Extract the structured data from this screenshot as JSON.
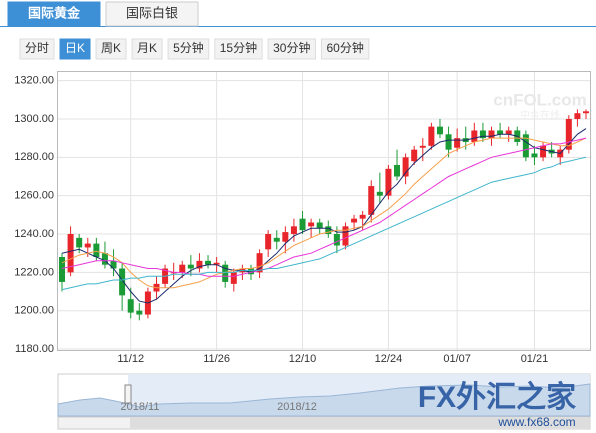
{
  "ui": {
    "tabs": [
      "国际黄金",
      "国际白银"
    ],
    "active_tab": 0,
    "periods": [
      "分时",
      "日K",
      "周K",
      "月K",
      "5分钟",
      "15分钟",
      "30分钟",
      "60分钟"
    ],
    "active_period": 1,
    "navigator_labels": [
      "2018/11",
      "2018/12"
    ],
    "watermark_top": "cnFOL.com",
    "watermark_top_sub": "中金在线",
    "watermark_brand": "FX外汇之家",
    "watermark_url": "www.fx68.com"
  },
  "chart_data": {
    "type": "candlestick",
    "categories": [
      null,
      null,
      null,
      null,
      null,
      null,
      null,
      null,
      "11/12",
      null,
      null,
      null,
      null,
      null,
      null,
      null,
      null,
      null,
      "11/26",
      null,
      null,
      null,
      null,
      null,
      null,
      null,
      null,
      null,
      "12/10",
      null,
      null,
      null,
      null,
      null,
      null,
      null,
      null,
      null,
      "12/24",
      null,
      null,
      null,
      null,
      null,
      null,
      null,
      "01/07",
      null,
      null,
      null,
      null,
      null,
      null,
      null,
      null,
      "01/21",
      null,
      null,
      null,
      null,
      null,
      null
    ],
    "open": [
      1228,
      1220,
      1238,
      1233,
      1235,
      1230,
      1226,
      1222,
      1206,
      1200,
      1198,
      1210,
      1214,
      1220,
      1220,
      1224,
      1222,
      1226,
      1224,
      1224,
      1214,
      1220,
      1222,
      1220,
      1232,
      1238,
      1236,
      1240,
      1248,
      1244,
      1246,
      1244,
      1240,
      1234,
      1246,
      1248,
      1250,
      1262,
      1260,
      1276,
      1270,
      1278,
      1285,
      1286,
      1296,
      1292,
      1285,
      1290,
      1288,
      1294,
      1290,
      1294,
      1292,
      1294,
      1292,
      1282,
      1280,
      1284,
      1280,
      1284,
      1300,
      1303
    ],
    "high": [
      1230,
      1244,
      1240,
      1238,
      1238,
      1236,
      1232,
      1225,
      1212,
      1204,
      1212,
      1218,
      1224,
      1225,
      1226,
      1229,
      1230,
      1229,
      1228,
      1226,
      1222,
      1224,
      1224,
      1232,
      1242,
      1242,
      1244,
      1248,
      1252,
      1248,
      1248,
      1247,
      1244,
      1246,
      1250,
      1252,
      1268,
      1272,
      1276,
      1284,
      1282,
      1286,
      1290,
      1298,
      1300,
      1296,
      1295,
      1296,
      1298,
      1298,
      1296,
      1298,
      1296,
      1296,
      1294,
      1286,
      1288,
      1288,
      1286,
      1302,
      1305,
      1305
    ],
    "low": [
      1210,
      1218,
      1230,
      1228,
      1226,
      1222,
      1218,
      1200,
      1196,
      1195,
      1196,
      1206,
      1212,
      1216,
      1217,
      1218,
      1220,
      1222,
      1220,
      1212,
      1210,
      1216,
      1216,
      1217,
      1228,
      1232,
      1230,
      1236,
      1240,
      1238,
      1240,
      1238,
      1230,
      1232,
      1242,
      1242,
      1246,
      1256,
      1258,
      1268,
      1266,
      1276,
      1278,
      1284,
      1290,
      1280,
      1283,
      1284,
      1286,
      1288,
      1286,
      1290,
      1288,
      1286,
      1278,
      1276,
      1278,
      1280,
      1276,
      1282,
      1296,
      1300
    ],
    "close": [
      1215,
      1240,
      1233,
      1235,
      1228,
      1224,
      1222,
      1208,
      1199,
      1198,
      1210,
      1214,
      1222,
      1220,
      1224,
      1222,
      1226,
      1224,
      1225,
      1215,
      1220,
      1222,
      1219,
      1230,
      1240,
      1236,
      1241,
      1244,
      1242,
      1246,
      1243,
      1240,
      1234,
      1244,
      1248,
      1250,
      1265,
      1260,
      1274,
      1270,
      1280,
      1284,
      1286,
      1296,
      1292,
      1284,
      1290,
      1288,
      1294,
      1290,
      1294,
      1292,
      1294,
      1288,
      1280,
      1280,
      1286,
      1282,
      1284,
      1300,
      1303,
      1304
    ],
    "up_color": "#e8252a",
    "down_color": "#1a9b35",
    "lines": [
      {
        "color": "#1b2a6b",
        "values": [
          1230,
          1231,
          1232,
          1230,
          1228,
          1226,
          1222,
          1216,
          1210,
          1205,
          1204,
          1206,
          1210,
          1214,
          1218,
          1221,
          1223,
          1224,
          1224,
          1222,
          1221,
          1221,
          1220,
          1222,
          1226,
          1230,
          1235,
          1239,
          1241,
          1243,
          1243,
          1243,
          1241,
          1241,
          1242,
          1244,
          1250,
          1256,
          1262,
          1266,
          1272,
          1277,
          1281,
          1285,
          1288,
          1289,
          1289,
          1289,
          1290,
          1291,
          1291,
          1292,
          1292,
          1291,
          1288,
          1285,
          1284,
          1283,
          1282,
          1287,
          1292,
          1295
        ]
      },
      {
        "color": "#f5a04a",
        "values": [
          1225,
          1227,
          1229,
          1230,
          1231,
          1230,
          1228,
          1225,
          1220,
          1216,
          1213,
          1212,
          1212,
          1212,
          1213,
          1214,
          1215,
          1217,
          1219,
          1220,
          1221,
          1222,
          1222,
          1223,
          1225,
          1228,
          1231,
          1234,
          1236,
          1238,
          1240,
          1241,
          1242,
          1242,
          1243,
          1244,
          1247,
          1250,
          1253,
          1257,
          1261,
          1266,
          1270,
          1274,
          1278,
          1282,
          1284,
          1286,
          1288,
          1289,
          1290,
          1290,
          1290,
          1290,
          1290,
          1289,
          1288,
          1287,
          1286,
          1286,
          1288,
          1290
        ]
      },
      {
        "color": "#e835d8",
        "values": [
          1222,
          1223,
          1224,
          1225,
          1226,
          1226,
          1226,
          1225,
          1224,
          1223,
          1222,
          1222,
          1221,
          1220,
          1220,
          1219,
          1219,
          1218,
          1218,
          1218,
          1218,
          1219,
          1220,
          1221,
          1222,
          1224,
          1226,
          1228,
          1229,
          1230,
          1232,
          1234,
          1236,
          1238,
          1240,
          1242,
          1244,
          1246,
          1249,
          1252,
          1255,
          1258,
          1261,
          1264,
          1267,
          1270,
          1272,
          1274,
          1276,
          1278,
          1280,
          1281,
          1282,
          1283,
          1284,
          1285,
          1286,
          1287,
          1287,
          1288,
          1289,
          1290
        ]
      },
      {
        "color": "#3fb6cc",
        "values": [
          1211,
          1212,
          1213,
          1214,
          1214,
          1215,
          1216,
          1216,
          1217,
          1217,
          1218,
          1218,
          1218,
          1219,
          1219,
          1219,
          1219,
          1220,
          1220,
          1220,
          1220,
          1221,
          1221,
          1221,
          1222,
          1222,
          1223,
          1224,
          1225,
          1226,
          1227,
          1229,
          1231,
          1233,
          1235,
          1237,
          1239,
          1241,
          1243,
          1245,
          1247,
          1249,
          1251,
          1253,
          1255,
          1257,
          1259,
          1261,
          1263,
          1265,
          1267,
          1268,
          1269,
          1270,
          1271,
          1272,
          1274,
          1275,
          1277,
          1278,
          1279,
          1280
        ]
      }
    ],
    "ylim": [
      1179.5,
      1324.5
    ],
    "yticks": [
      {
        "value": 1180,
        "label": "1180.00"
      },
      {
        "value": 1200,
        "label": "1200.00"
      },
      {
        "value": 1220,
        "label": "1220.00"
      },
      {
        "value": 1240,
        "label": "1240.00"
      },
      {
        "value": 1260,
        "label": "1260.00"
      },
      {
        "value": 1280,
        "label": "1280.00"
      },
      {
        "value": 1300,
        "label": "1300.00"
      },
      {
        "value": 1320,
        "label": "1320.00"
      }
    ],
    "grid": true
  }
}
